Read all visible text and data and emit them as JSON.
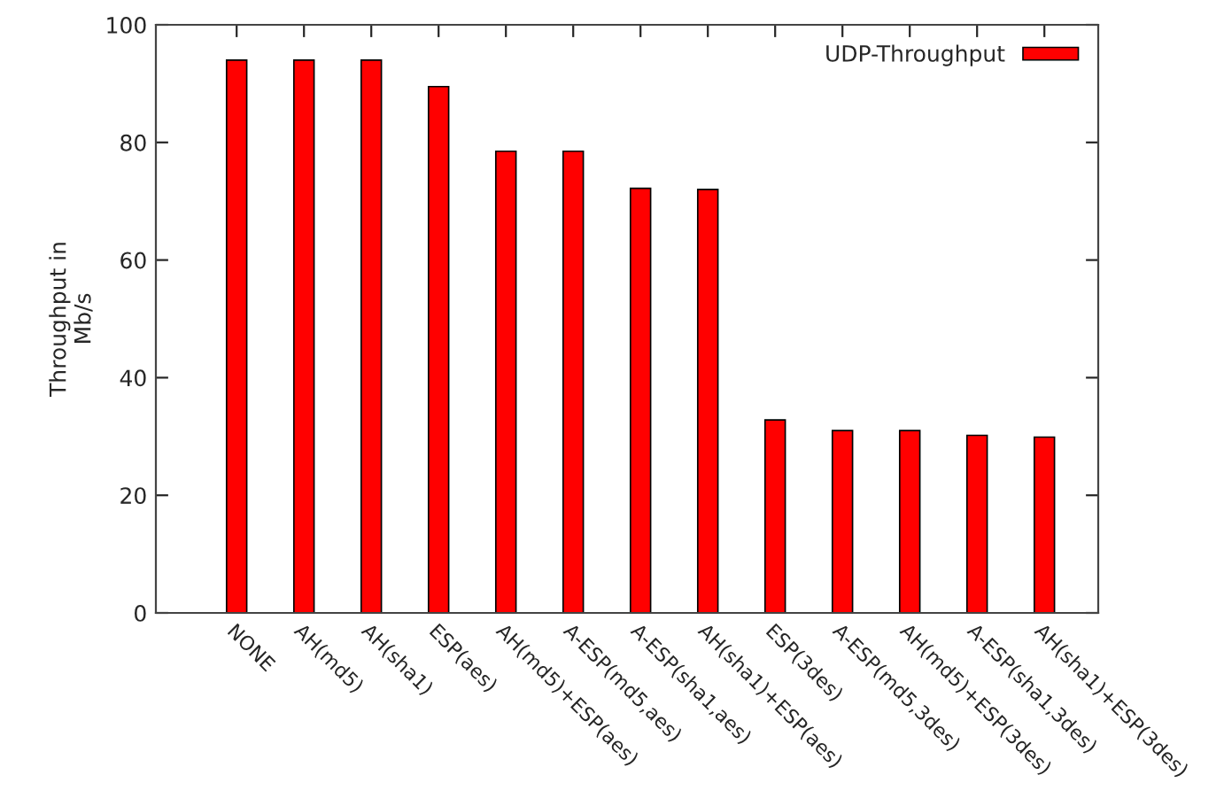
{
  "chart_data": {
    "type": "bar",
    "ylabel": "Throughput in\nMb/s",
    "categories": [
      "NONE",
      "AH(md5)",
      "AH(sha1)",
      "ESP(aes)",
      "AH(md5)+ESP(aes)",
      "A-ESP(md5,aes)",
      "A-ESP(sha1,aes)",
      "AH(sha1)+ESP(aes)",
      "ESP(3des)",
      "A-ESP(md5,3des)",
      "AH(md5)+ESP(3des)",
      "A-ESP(sha1,3des)",
      "AH(sha1)+ESP(3des)"
    ],
    "series": [
      {
        "name": "UDP-Throughput",
        "color": "#ff0000",
        "values": [
          94,
          94,
          94,
          89.5,
          78.5,
          78.5,
          72.2,
          72,
          32.8,
          31,
          31,
          30.2,
          29.9
        ]
      }
    ],
    "ylim": [
      0,
      100
    ],
    "yticks": [
      0,
      20,
      40,
      60,
      80,
      100
    ],
    "legend": "top right",
    "grid": false
  }
}
